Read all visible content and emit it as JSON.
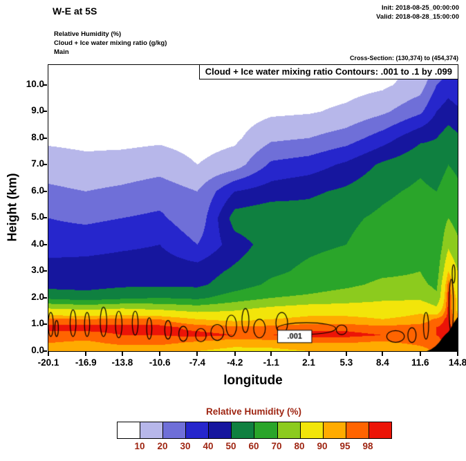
{
  "header": {
    "title": "W-E at 5S",
    "init": "Init: 2018-08-25_00:00:00",
    "valid": "Valid: 2018-08-28_15:00:00",
    "field_rh": "Relative Humidity  (%)",
    "field_cloud": "Cloud + Ice water mixing ratio   (g/kg)",
    "field_main": "Main",
    "cross_section": "Cross-Section: (130,374) to (454,374)"
  },
  "plot": {
    "contour_box_title": "Cloud + Ice water mixing ratio Contours: .001 to .1 by .099"
  },
  "chart_data": {
    "type": "heatmap",
    "title": "Relative Humidity cross-section W-E at 5S with cloud + ice water mixing ratio contours",
    "xlabel": "longitude",
    "ylabel": "Height (km)",
    "xlim": [
      -20.1,
      14.8
    ],
    "ylim": [
      0,
      10.75
    ],
    "x_ticks": [
      "-20.1",
      "-16.9",
      "-13.8",
      "-10.6",
      "-7.4",
      "-4.2",
      "-1.1",
      "2.1",
      "5.3",
      "8.4",
      "11.6",
      "14.8"
    ],
    "y_ticks": [
      "0.0",
      "1.0",
      "2.0",
      "3.0",
      "4.0",
      "5.0",
      "6.0",
      "7.0",
      "8.0",
      "9.0",
      "10.0"
    ],
    "levels": [
      10,
      20,
      30,
      40,
      50,
      60,
      70,
      80,
      90,
      95,
      98
    ],
    "level_colors": [
      "#ffffff",
      "#b7b7ea",
      "#6f6fd8",
      "#2626cc",
      "#16169e",
      "#0f8040",
      "#2aa52a",
      "#8ccb1e",
      "#f2e50a",
      "#ffab00",
      "#ff6400",
      "#ec1407"
    ],
    "x_grid": [
      -20.1,
      -16.9,
      -13.8,
      -10.6,
      -7.4,
      -4.2,
      -1.1,
      2.1,
      5.3,
      8.4,
      11.6,
      13.0,
      14.0,
      14.8
    ],
    "z_grid": [
      0,
      0.3,
      0.6,
      0.9,
      1.2,
      1.6,
      2.0,
      2.5,
      3.0,
      4.0,
      5.0,
      6.0,
      7.0,
      8.0,
      9.0,
      10.0,
      10.75
    ],
    "values": [
      [
        91,
        90,
        92,
        92,
        90,
        88,
        88,
        90,
        90,
        90,
        93,
        96,
        99,
        95
      ],
      [
        95,
        94,
        96,
        96,
        94,
        92,
        93,
        95,
        95,
        94,
        96,
        97,
        99,
        96
      ],
      [
        97,
        97,
        98,
        98,
        99,
        98,
        98,
        99,
        99,
        98,
        98,
        98,
        99,
        97
      ],
      [
        99,
        99,
        99,
        99,
        97,
        96,
        96,
        97,
        97,
        96,
        97,
        98,
        99,
        96
      ],
      [
        96,
        95,
        96,
        95,
        90,
        88,
        90,
        92,
        92,
        90,
        92,
        96,
        99,
        92
      ],
      [
        80,
        78,
        80,
        78,
        75,
        78,
        82,
        85,
        85,
        85,
        88,
        82,
        99,
        88
      ],
      [
        58,
        55,
        58,
        60,
        58,
        65,
        70,
        72,
        75,
        78,
        78,
        72,
        99,
        88
      ],
      [
        46,
        46,
        48,
        48,
        48,
        55,
        62,
        65,
        68,
        72,
        72,
        68,
        97,
        84
      ],
      [
        45,
        45,
        46,
        46,
        45,
        52,
        58,
        62,
        65,
        68,
        70,
        65,
        90,
        80
      ],
      [
        35,
        36,
        38,
        40,
        30,
        45,
        55,
        58,
        60,
        65,
        68,
        62,
        78,
        72
      ],
      [
        30,
        28,
        30,
        32,
        22,
        55,
        58,
        55,
        58,
        62,
        65,
        62,
        70,
        66
      ],
      [
        22,
        20,
        22,
        25,
        20,
        40,
        45,
        48,
        52,
        58,
        62,
        60,
        65,
        62
      ],
      [
        15,
        13,
        14,
        16,
        10,
        15,
        32,
        35,
        42,
        52,
        58,
        55,
        60,
        58
      ],
      [
        8,
        7,
        7,
        8,
        6,
        8,
        18,
        20,
        25,
        35,
        48,
        50,
        55,
        52
      ],
      [
        5,
        5,
        5,
        5,
        5,
        5,
        8,
        9,
        12,
        18,
        28,
        40,
        45,
        42
      ],
      [
        4,
        4,
        4,
        4,
        4,
        5,
        5,
        5,
        6,
        8,
        15,
        30,
        35,
        32
      ],
      [
        4,
        4,
        4,
        4,
        4,
        4,
        4,
        5,
        5,
        6,
        10,
        20,
        28,
        24
      ]
    ],
    "cloud_contours": [
      [
        -19.9,
        1.0,
        0.22,
        0.45
      ],
      [
        -19.4,
        0.85,
        0.15,
        0.3
      ],
      [
        -18.0,
        1.05,
        0.25,
        0.5
      ],
      [
        -16.8,
        1.0,
        0.22,
        0.45
      ],
      [
        -15.4,
        1.1,
        0.28,
        0.55
      ],
      [
        -14.1,
        1.0,
        0.28,
        0.5
      ],
      [
        -12.7,
        1.05,
        0.25,
        0.45
      ],
      [
        -11.5,
        0.85,
        0.22,
        0.4
      ],
      [
        -9.9,
        0.8,
        0.28,
        0.35
      ],
      [
        -8.6,
        0.65,
        0.38,
        0.28
      ],
      [
        -7.1,
        0.6,
        0.45,
        0.25
      ],
      [
        -5.7,
        0.7,
        0.55,
        0.3
      ],
      [
        -4.5,
        0.95,
        0.45,
        0.4
      ],
      [
        -3.3,
        1.15,
        0.3,
        0.45
      ],
      [
        -2.1,
        0.85,
        0.5,
        0.35
      ],
      [
        -0.2,
        1.05,
        0.5,
        0.4
      ],
      [
        1.9,
        0.85,
        2.5,
        0.22
      ],
      [
        4.9,
        0.8,
        0.45,
        0.18
      ],
      [
        9.5,
        0.55,
        0.75,
        0.22
      ],
      [
        10.9,
        0.6,
        0.35,
        0.28
      ],
      [
        12.1,
        0.95,
        0.22,
        0.5
      ],
      [
        14.25,
        1.7,
        0.18,
        1.0
      ],
      [
        14.45,
        2.9,
        0.12,
        0.35
      ]
    ],
    "contour_label": {
      "text": ".001",
      "x": 0.9,
      "y": 0.55
    },
    "terrain": [
      [
        12.15,
        0
      ],
      [
        12.5,
        0.06
      ],
      [
        12.9,
        0.18
      ],
      [
        13.2,
        0.32
      ],
      [
        13.5,
        0.5
      ],
      [
        13.75,
        0.62
      ],
      [
        14.0,
        0.72
      ],
      [
        14.2,
        0.85
      ],
      [
        14.45,
        1.05
      ],
      [
        14.65,
        1.18
      ],
      [
        14.8,
        1.28
      ],
      [
        14.8,
        0
      ]
    ],
    "colorbar": {
      "title": "Relative Humidity  (%)",
      "tick_labels": [
        "10",
        "20",
        "30",
        "40",
        "50",
        "60",
        "70",
        "80",
        "90",
        "95",
        "98"
      ],
      "label_color": "#9e2512"
    }
  }
}
